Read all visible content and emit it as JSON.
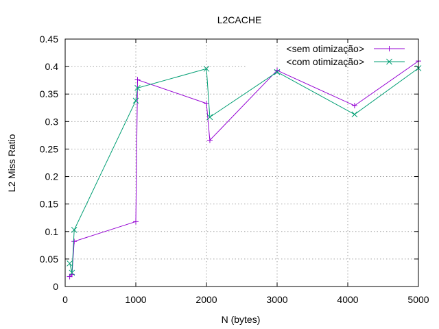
{
  "chart_data": {
    "type": "line",
    "title": "L2CACHE",
    "xlabel": "N (bytes)",
    "ylabel": "L2 Miss Ratio",
    "xlim": [
      0,
      5000
    ],
    "ylim": [
      0,
      0.45
    ],
    "xticks": [
      0,
      1000,
      2000,
      3000,
      4000,
      5000
    ],
    "xtick_labels": [
      "0",
      "1000",
      "2000",
      "3000",
      "4000",
      "5000"
    ],
    "yticks": [
      0,
      0.05,
      0.1,
      0.15,
      0.2,
      0.25,
      0.3,
      0.35,
      0.4,
      0.45
    ],
    "ytick_labels": [
      "0",
      "0.05",
      "0.1",
      "0.15",
      "0.2",
      "0.25",
      "0.3",
      "0.35",
      "0.4",
      "0.45"
    ],
    "grid": true,
    "legend_position": "top-right",
    "series": [
      {
        "name": "<sem otimização>",
        "color": "#9400d3",
        "marker": "plus",
        "points": [
          [
            64,
            0.018
          ],
          [
            96,
            0.022
          ],
          [
            128,
            0.082
          ],
          [
            1000,
            0.118
          ],
          [
            1024,
            0.376
          ],
          [
            2000,
            0.333
          ],
          [
            2048,
            0.266
          ],
          [
            3000,
            0.393
          ],
          [
            4096,
            0.329
          ],
          [
            5000,
            0.41
          ]
        ]
      },
      {
        "name": "<com otimização>",
        "color": "#009e73",
        "marker": "cross",
        "points": [
          [
            64,
            0.042
          ],
          [
            96,
            0.025
          ],
          [
            128,
            0.103
          ],
          [
            1000,
            0.338
          ],
          [
            1024,
            0.361
          ],
          [
            2000,
            0.396
          ],
          [
            2048,
            0.308
          ],
          [
            3000,
            0.39
          ],
          [
            4096,
            0.313
          ],
          [
            5000,
            0.397
          ]
        ]
      }
    ]
  }
}
